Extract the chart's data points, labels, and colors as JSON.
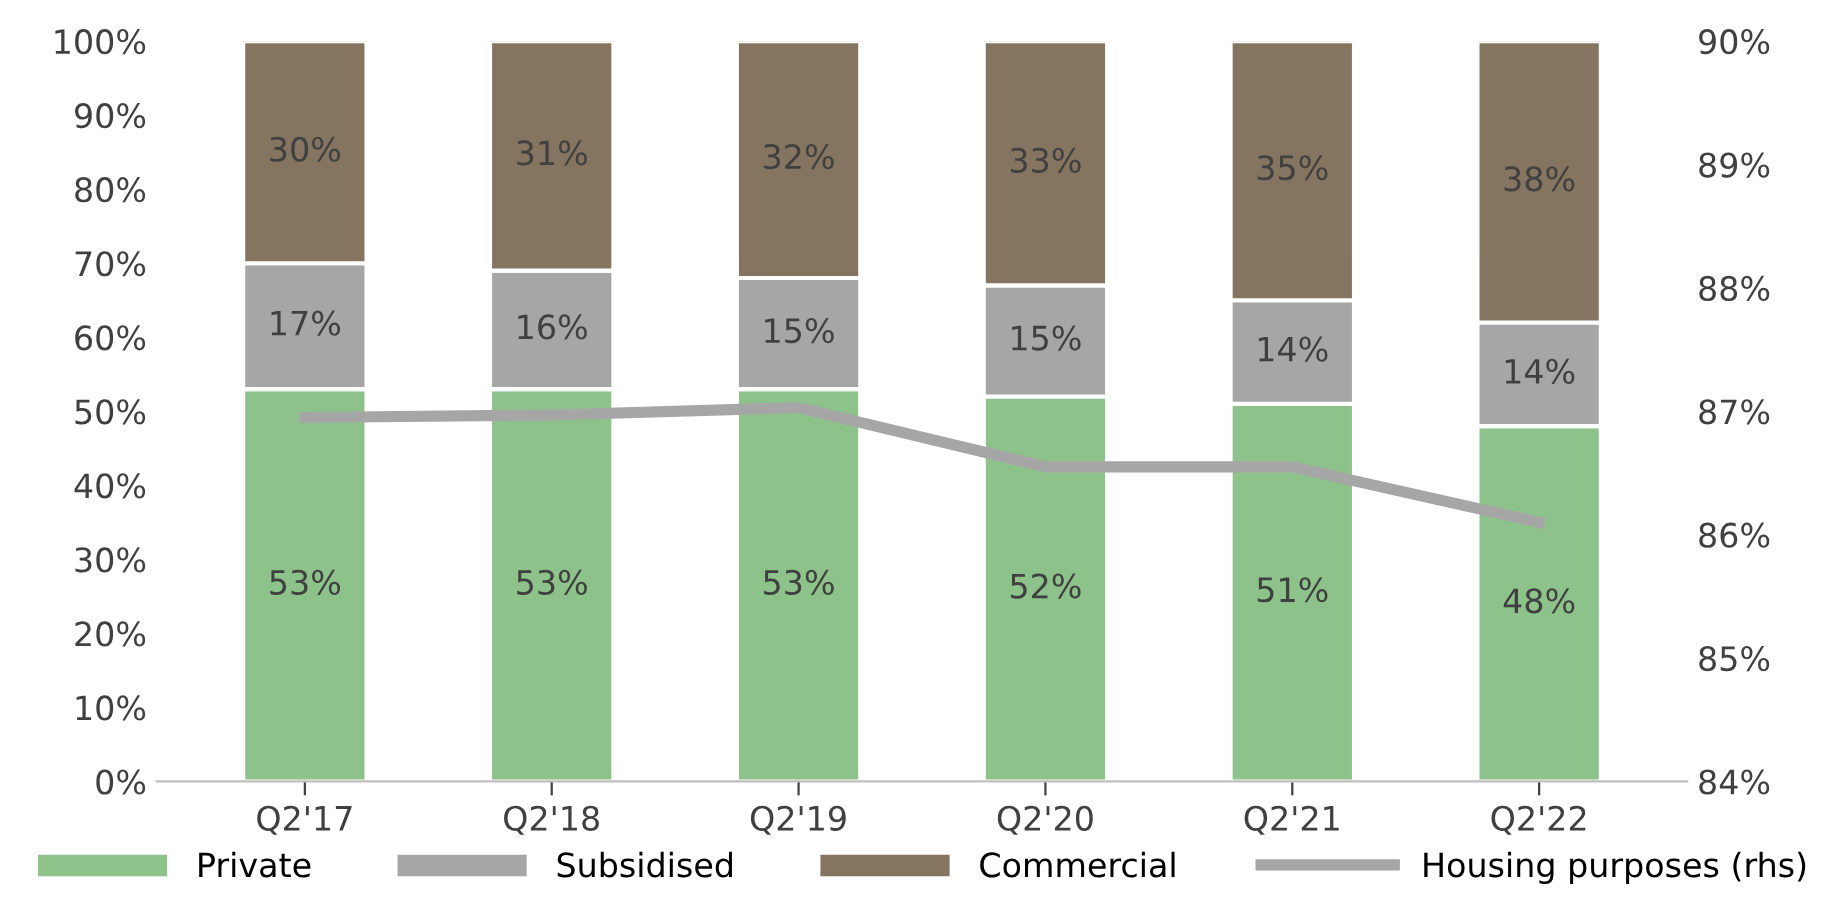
{
  "chart_data": {
    "type": "bar",
    "stacked": true,
    "categories": [
      "Q2'17",
      "Q2'18",
      "Q2'19",
      "Q2'20",
      "Q2'21",
      "Q2'22"
    ],
    "series": [
      {
        "name": "Private",
        "color": "#8dc38b",
        "values": [
          53,
          53,
          53,
          52,
          51,
          48
        ],
        "value_labels": [
          "53%",
          "53%",
          "53%",
          "52%",
          "51%",
          "48%"
        ]
      },
      {
        "name": "Subsidised",
        "color": "#a6a6a6",
        "values": [
          17,
          16,
          15,
          15,
          14,
          14
        ],
        "value_labels": [
          "17%",
          "16%",
          "15%",
          "15%",
          "14%",
          "14%"
        ]
      },
      {
        "name": "Commercial",
        "color": "#85745f",
        "values": [
          30,
          31,
          32,
          33,
          35,
          38
        ],
        "value_labels": [
          "30%",
          "31%",
          "32%",
          "33%",
          "35%",
          "38%"
        ]
      },
      {
        "name": "Housing purposes (rhs)",
        "type": "line",
        "axis": "y2",
        "color": "#a6a6a6",
        "values": [
          86.95,
          86.97,
          87.03,
          86.55,
          86.55,
          86.1
        ]
      }
    ],
    "ylim": [
      0,
      100
    ],
    "yticks": [
      {
        "value": 0,
        "label": "0%"
      },
      {
        "value": 10,
        "label": "10%"
      },
      {
        "value": 20,
        "label": "20%"
      },
      {
        "value": 30,
        "label": "30%"
      },
      {
        "value": 40,
        "label": "40%"
      },
      {
        "value": 50,
        "label": "50%"
      },
      {
        "value": 60,
        "label": "60%"
      },
      {
        "value": 70,
        "label": "70%"
      },
      {
        "value": 80,
        "label": "80%"
      },
      {
        "value": 90,
        "label": "90%"
      },
      {
        "value": 100,
        "label": "100%"
      }
    ],
    "y2lim": [
      84,
      90
    ],
    "y2ticks": [
      {
        "value": 84,
        "label": "84%"
      },
      {
        "value": 85,
        "label": "85%"
      },
      {
        "value": 86,
        "label": "86%"
      },
      {
        "value": 87,
        "label": "87%"
      },
      {
        "value": 88,
        "label": "88%"
      },
      {
        "value": 89,
        "label": "89%"
      },
      {
        "value": 90,
        "label": "90%"
      }
    ],
    "grid": false,
    "legend": "bottom",
    "marker": "none",
    "line_style": "solid"
  }
}
